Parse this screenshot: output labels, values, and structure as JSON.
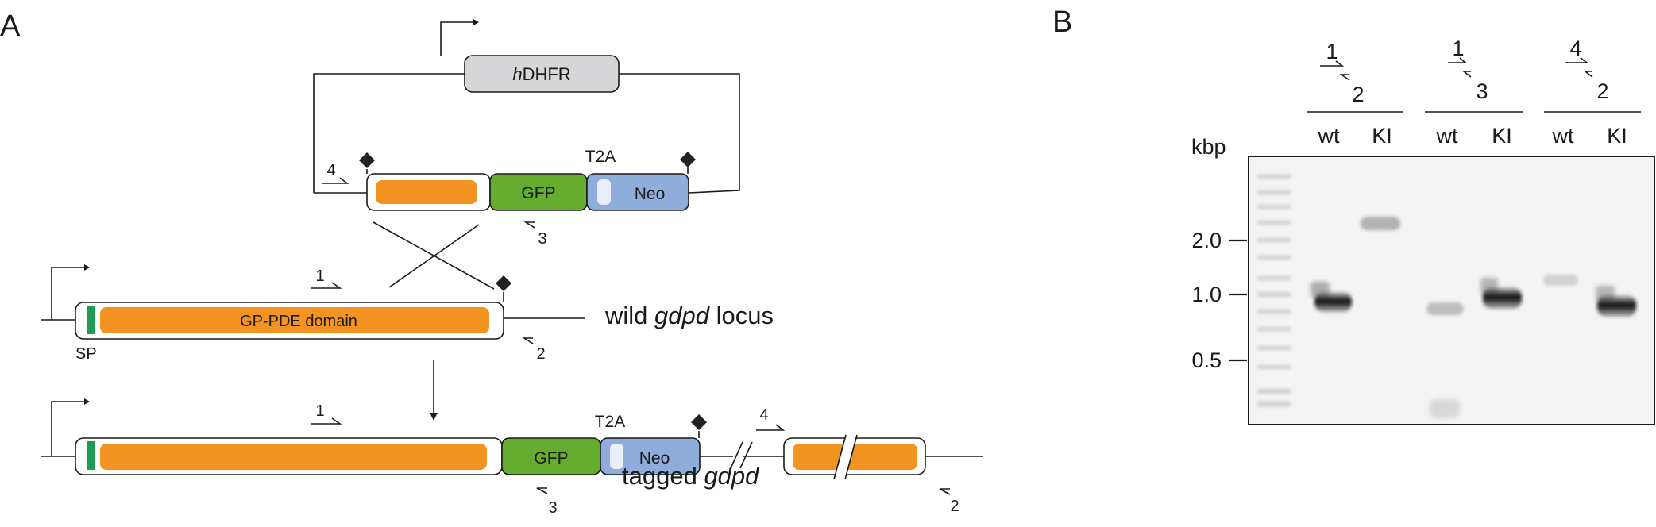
{
  "panel_a": {
    "panel_label": "A",
    "plasmid": {
      "selection_marker_italic": "h",
      "selection_marker_rest": "DHFR",
      "t2a_label": "T2A",
      "gfp_label": "GFP",
      "neo_label": "Neo"
    },
    "wild_locus": {
      "domain_label": "GP-PDE domain",
      "sp_label": "SP",
      "caption_prefix": "wild ",
      "caption_gene": "gdpd",
      "caption_suffix": " locus"
    },
    "tagged_locus": {
      "t2a_label": "T2A",
      "gfp_label": "GFP",
      "neo_label": "Neo",
      "caption_prefix": "tagged ",
      "caption_gene": "gdpd"
    },
    "primers": {
      "p1": "1",
      "p2": "2",
      "p3": "3",
      "p4": "4"
    },
    "colors": {
      "cds": "#F39322",
      "gfp": "#66AC2E",
      "neo": "#8EADDA",
      "signal_peptide": "#1E9A52",
      "hdhfr": "#D6D6D9"
    }
  },
  "panel_b": {
    "panel_label": "B",
    "unit_label": "kbp",
    "lane_groups": [
      {
        "primer_top": "1",
        "primer_bottom": "2",
        "lanes": [
          "wt",
          "KI"
        ]
      },
      {
        "primer_top": "1",
        "primer_bottom": "3",
        "lanes": [
          "wt",
          "KI"
        ]
      },
      {
        "primer_top": "4",
        "primer_bottom": "2",
        "lanes": [
          "wt",
          "KI"
        ]
      }
    ],
    "size_markers": [
      "2.0",
      "1.0",
      "0.5"
    ]
  }
}
